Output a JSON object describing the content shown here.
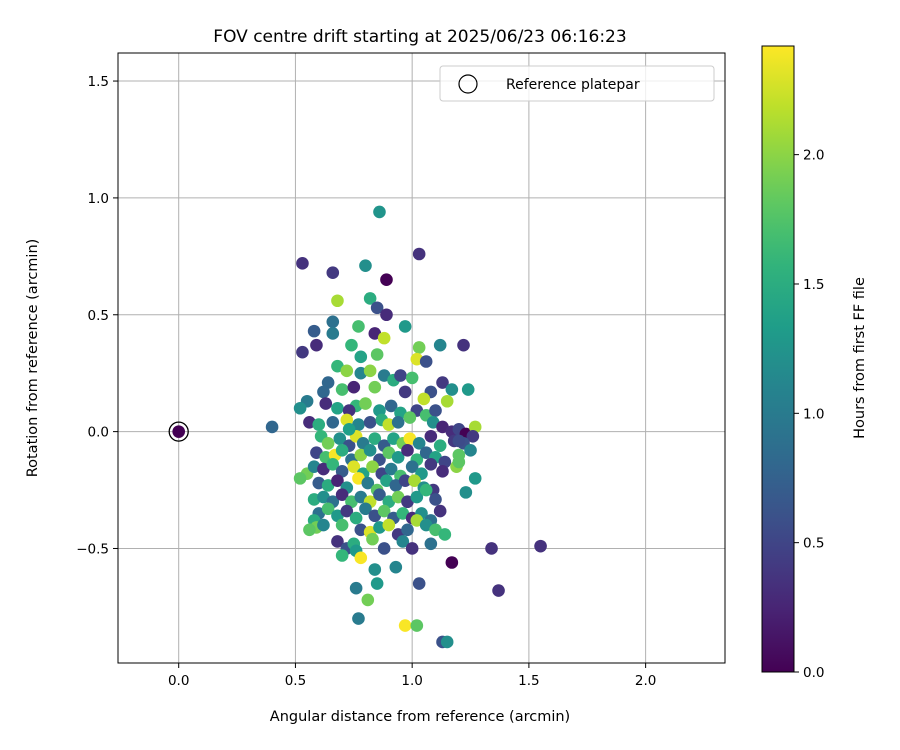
{
  "chart_data": {
    "type": "scatter",
    "title": "FOV centre drift starting at 2025/06/23 06:16:23",
    "xlabel": "Angular distance from reference (arcmin)",
    "ylabel": "Rotation from reference (arcmin)",
    "xlim": [
      -0.26,
      2.34
    ],
    "ylim": [
      -0.99,
      1.62
    ],
    "xticks": [
      0.0,
      0.5,
      1.0,
      1.5,
      2.0
    ],
    "xtick_labels": [
      "0.0",
      "0.5",
      "1.0",
      "1.5",
      "2.0"
    ],
    "yticks": [
      -0.5,
      0.0,
      0.5,
      1.0,
      1.5
    ],
    "ytick_labels": [
      "−0.5",
      "0.0",
      "0.5",
      "1.0",
      "1.5"
    ],
    "grid": true,
    "legend": {
      "placement": "top-right",
      "entries": [
        "Reference platepar"
      ]
    },
    "colorbar": {
      "label": "Hours from first FF file",
      "colormap": "viridis",
      "range": [
        0.0,
        2.42
      ],
      "ticks": [
        0.0,
        0.5,
        1.0,
        1.5,
        2.0
      ],
      "tick_labels": [
        "0.0",
        "0.5",
        "1.0",
        "1.5",
        "2.0"
      ]
    },
    "reference_point": {
      "x": 0.0,
      "y": 0.0,
      "c": 0.0
    },
    "series": [
      {
        "points": [
          [
            0.86,
            0.94,
            1.25
          ],
          [
            1.03,
            0.76,
            0.35
          ],
          [
            0.53,
            0.72,
            0.35
          ],
          [
            0.66,
            0.68,
            0.4
          ],
          [
            0.89,
            0.65,
            0.0
          ],
          [
            0.8,
            0.71,
            1.2
          ],
          [
            0.68,
            0.56,
            2.1
          ],
          [
            0.82,
            0.57,
            1.5
          ],
          [
            0.85,
            0.53,
            0.6
          ],
          [
            0.89,
            0.5,
            0.3
          ],
          [
            0.58,
            0.43,
            0.7
          ],
          [
            0.66,
            0.47,
            0.9
          ],
          [
            0.77,
            0.45,
            1.7
          ],
          [
            0.84,
            0.42,
            0.25
          ],
          [
            0.97,
            0.45,
            1.3
          ],
          [
            0.66,
            0.42,
            1.0
          ],
          [
            0.59,
            0.37,
            0.3
          ],
          [
            0.53,
            0.34,
            0.4
          ],
          [
            0.88,
            0.4,
            2.2
          ],
          [
            1.22,
            0.37,
            0.35
          ],
          [
            1.03,
            0.36,
            1.9
          ],
          [
            1.12,
            0.37,
            1.1
          ],
          [
            0.74,
            0.37,
            1.6
          ],
          [
            0.78,
            0.32,
            1.4
          ],
          [
            0.85,
            0.33,
            1.8
          ],
          [
            1.02,
            0.31,
            2.3
          ],
          [
            1.06,
            0.3,
            0.6
          ],
          [
            0.68,
            0.28,
            1.6
          ],
          [
            0.72,
            0.26,
            2.0
          ],
          [
            0.78,
            0.25,
            1.1
          ],
          [
            0.82,
            0.26,
            2.0
          ],
          [
            0.88,
            0.24,
            1.0
          ],
          [
            0.92,
            0.22,
            1.5
          ],
          [
            0.95,
            0.24,
            0.5
          ],
          [
            1.0,
            0.23,
            1.7
          ],
          [
            1.13,
            0.21,
            0.4
          ],
          [
            0.64,
            0.21,
            0.8
          ],
          [
            0.7,
            0.18,
            1.7
          ],
          [
            0.75,
            0.19,
            0.25
          ],
          [
            0.62,
            0.17,
            0.8
          ],
          [
            0.84,
            0.19,
            1.9
          ],
          [
            0.97,
            0.17,
            0.4
          ],
          [
            1.08,
            0.17,
            0.6
          ],
          [
            1.17,
            0.18,
            1.2
          ],
          [
            1.24,
            0.18,
            1.3
          ],
          [
            0.55,
            0.13,
            1.0
          ],
          [
            0.52,
            0.1,
            1.2
          ],
          [
            0.63,
            0.12,
            0.3
          ],
          [
            0.68,
            0.1,
            1.4
          ],
          [
            0.76,
            0.11,
            1.6
          ],
          [
            0.73,
            0.09,
            0.35
          ],
          [
            0.8,
            0.12,
            1.9
          ],
          [
            0.86,
            0.09,
            1.3
          ],
          [
            0.91,
            0.11,
            0.8
          ],
          [
            0.95,
            0.08,
            1.4
          ],
          [
            1.02,
            0.09,
            0.5
          ],
          [
            1.06,
            0.07,
            1.7
          ],
          [
            1.1,
            0.09,
            0.6
          ],
          [
            1.15,
            0.13,
            2.1
          ],
          [
            1.05,
            0.14,
            2.2
          ],
          [
            0.56,
            0.04,
            0.3
          ],
          [
            0.6,
            0.03,
            1.5
          ],
          [
            0.66,
            0.04,
            0.8
          ],
          [
            0.72,
            0.05,
            2.3
          ],
          [
            0.77,
            0.03,
            1.1
          ],
          [
            0.82,
            0.04,
            0.6
          ],
          [
            0.87,
            0.05,
            1.5
          ],
          [
            0.9,
            0.03,
            2.2
          ],
          [
            0.94,
            0.04,
            0.9
          ],
          [
            0.99,
            0.06,
            1.8
          ],
          [
            1.09,
            0.04,
            1.2
          ],
          [
            1.13,
            0.02,
            0.25
          ],
          [
            1.17,
            0.0,
            0.3
          ],
          [
            1.2,
            0.01,
            0.5
          ],
          [
            1.23,
            -0.01,
            0.0
          ],
          [
            1.27,
            0.02,
            2.1
          ],
          [
            1.26,
            -0.02,
            0.4
          ],
          [
            0.61,
            -0.02,
            1.6
          ],
          [
            0.64,
            -0.05,
            1.9
          ],
          [
            0.69,
            -0.03,
            1.2
          ],
          [
            0.73,
            -0.06,
            0.6
          ],
          [
            0.76,
            -0.02,
            2.3
          ],
          [
            0.79,
            -0.05,
            1.0
          ],
          [
            0.84,
            -0.03,
            1.5
          ],
          [
            0.88,
            -0.06,
            0.7
          ],
          [
            0.92,
            -0.03,
            1.4
          ],
          [
            0.96,
            -0.05,
            1.9
          ],
          [
            0.99,
            -0.03,
            2.4
          ],
          [
            1.03,
            -0.05,
            1.1
          ],
          [
            1.08,
            -0.02,
            0.3
          ],
          [
            1.12,
            -0.06,
            1.5
          ],
          [
            1.18,
            -0.04,
            0.4
          ],
          [
            1.22,
            -0.05,
            0.6
          ],
          [
            0.59,
            -0.09,
            0.5
          ],
          [
            0.63,
            -0.11,
            1.7
          ],
          [
            0.67,
            -0.1,
            2.4
          ],
          [
            0.7,
            -0.08,
            1.5
          ],
          [
            0.74,
            -0.12,
            0.9
          ],
          [
            0.78,
            -0.1,
            2.0
          ],
          [
            0.82,
            -0.08,
            1.2
          ],
          [
            0.86,
            -0.12,
            0.6
          ],
          [
            0.9,
            -0.09,
            1.8
          ],
          [
            0.94,
            -0.11,
            1.3
          ],
          [
            0.98,
            -0.08,
            0.3
          ],
          [
            1.02,
            -0.12,
            1.6
          ],
          [
            1.06,
            -0.09,
            0.8
          ],
          [
            1.1,
            -0.11,
            1.4
          ],
          [
            1.14,
            -0.13,
            0.5
          ],
          [
            1.2,
            -0.1,
            1.8
          ],
          [
            1.25,
            -0.08,
            1.1
          ],
          [
            0.55,
            -0.18,
            1.9
          ],
          [
            0.58,
            -0.15,
            1.1
          ],
          [
            0.62,
            -0.16,
            0.3
          ],
          [
            0.66,
            -0.14,
            1.6
          ],
          [
            0.7,
            -0.17,
            0.7
          ],
          [
            0.75,
            -0.15,
            2.3
          ],
          [
            0.79,
            -0.18,
            1.4
          ],
          [
            0.83,
            -0.15,
            2.0
          ],
          [
            0.87,
            -0.18,
            0.5
          ],
          [
            0.91,
            -0.16,
            1.0
          ],
          [
            0.95,
            -0.19,
            1.7
          ],
          [
            1.0,
            -0.15,
            0.9
          ],
          [
            1.04,
            -0.18,
            1.3
          ],
          [
            1.08,
            -0.14,
            0.4
          ],
          [
            1.13,
            -0.17,
            0.3
          ],
          [
            1.19,
            -0.15,
            2.0
          ],
          [
            1.2,
            -0.13,
            1.8
          ],
          [
            0.52,
            -0.2,
            1.8
          ],
          [
            0.6,
            -0.22,
            0.7
          ],
          [
            0.64,
            -0.23,
            1.5
          ],
          [
            0.68,
            -0.21,
            0.25
          ],
          [
            0.72,
            -0.24,
            1.2
          ],
          [
            0.77,
            -0.2,
            2.4
          ],
          [
            0.81,
            -0.22,
            1.0
          ],
          [
            0.85,
            -0.25,
            1.8
          ],
          [
            0.89,
            -0.21,
            1.4
          ],
          [
            0.93,
            -0.23,
            0.8
          ],
          [
            0.97,
            -0.21,
            0.5
          ],
          [
            1.01,
            -0.21,
            2.1
          ],
          [
            1.05,
            -0.24,
            1.2
          ],
          [
            1.09,
            -0.25,
            0.4
          ],
          [
            1.27,
            -0.2,
            1.3
          ],
          [
            0.58,
            -0.29,
            1.5
          ],
          [
            0.62,
            -0.28,
            1.2
          ],
          [
            0.66,
            -0.3,
            0.9
          ],
          [
            0.7,
            -0.27,
            0.3
          ],
          [
            0.74,
            -0.3,
            1.7
          ],
          [
            0.78,
            -0.28,
            1.0
          ],
          [
            0.82,
            -0.3,
            2.2
          ],
          [
            0.86,
            -0.27,
            0.7
          ],
          [
            0.9,
            -0.3,
            1.5
          ],
          [
            0.94,
            -0.28,
            1.9
          ],
          [
            0.98,
            -0.3,
            0.4
          ],
          [
            1.02,
            -0.28,
            1.3
          ],
          [
            1.06,
            -0.25,
            1.6
          ],
          [
            1.1,
            -0.29,
            0.6
          ],
          [
            1.23,
            -0.26,
            1.2
          ],
          [
            0.6,
            -0.35,
            0.9
          ],
          [
            0.64,
            -0.33,
            1.7
          ],
          [
            0.68,
            -0.36,
            1.3
          ],
          [
            0.72,
            -0.34,
            0.4
          ],
          [
            0.76,
            -0.37,
            1.5
          ],
          [
            0.8,
            -0.33,
            1.0
          ],
          [
            0.84,
            -0.36,
            0.6
          ],
          [
            0.88,
            -0.34,
            1.8
          ],
          [
            0.92,
            -0.37,
            0.7
          ],
          [
            0.96,
            -0.35,
            1.6
          ],
          [
            1.0,
            -0.37,
            0.3
          ],
          [
            1.04,
            -0.35,
            1.2
          ],
          [
            1.08,
            -0.38,
            0.9
          ],
          [
            1.12,
            -0.34,
            0.35
          ],
          [
            0.58,
            -0.38,
            1.5
          ],
          [
            0.59,
            -0.41,
            1.9
          ],
          [
            0.56,
            -0.42,
            1.8
          ],
          [
            0.62,
            -0.4,
            1.1
          ],
          [
            0.7,
            -0.4,
            1.7
          ],
          [
            0.78,
            -0.42,
            0.6
          ],
          [
            0.82,
            -0.43,
            2.3
          ],
          [
            0.86,
            -0.41,
            1.3
          ],
          [
            0.9,
            -0.4,
            2.2
          ],
          [
            0.94,
            -0.44,
            0.4
          ],
          [
            0.98,
            -0.42,
            0.8
          ],
          [
            1.02,
            -0.38,
            2.1
          ],
          [
            1.06,
            -0.4,
            1.2
          ],
          [
            1.1,
            -0.42,
            1.7
          ],
          [
            1.14,
            -0.44,
            1.6
          ],
          [
            0.68,
            -0.47,
            0.35
          ],
          [
            0.72,
            -0.5,
            0.6
          ],
          [
            0.75,
            -0.48,
            1.5
          ],
          [
            0.83,
            -0.46,
            1.9
          ],
          [
            0.88,
            -0.5,
            0.6
          ],
          [
            0.96,
            -0.47,
            1.1
          ],
          [
            1.0,
            -0.5,
            0.35
          ],
          [
            1.08,
            -0.48,
            0.9
          ],
          [
            0.7,
            -0.53,
            1.6
          ],
          [
            0.76,
            -0.51,
            1.3
          ],
          [
            0.78,
            -0.54,
            2.4
          ],
          [
            0.84,
            -0.59,
            1.2
          ],
          [
            0.93,
            -0.58,
            1.1
          ],
          [
            1.17,
            -0.56,
            0.0
          ],
          [
            1.34,
            -0.5,
            0.35
          ],
          [
            1.55,
            -0.49,
            0.35
          ],
          [
            0.85,
            -0.65,
            1.3
          ],
          [
            0.76,
            -0.67,
            1.0
          ],
          [
            1.03,
            -0.65,
            0.6
          ],
          [
            1.37,
            -0.68,
            0.35
          ],
          [
            0.81,
            -0.72,
            1.9
          ],
          [
            0.77,
            -0.8,
            1.0
          ],
          [
            0.97,
            -0.83,
            2.4
          ],
          [
            1.02,
            -0.83,
            1.8
          ],
          [
            1.13,
            -0.9,
            0.6
          ],
          [
            1.15,
            -0.9,
            1.2
          ],
          [
            0.4,
            0.02,
            0.8
          ],
          [
            1.2,
            -0.04,
            0.55
          ],
          [
            0.73,
            0.01,
            1.35
          ]
        ]
      }
    ]
  }
}
